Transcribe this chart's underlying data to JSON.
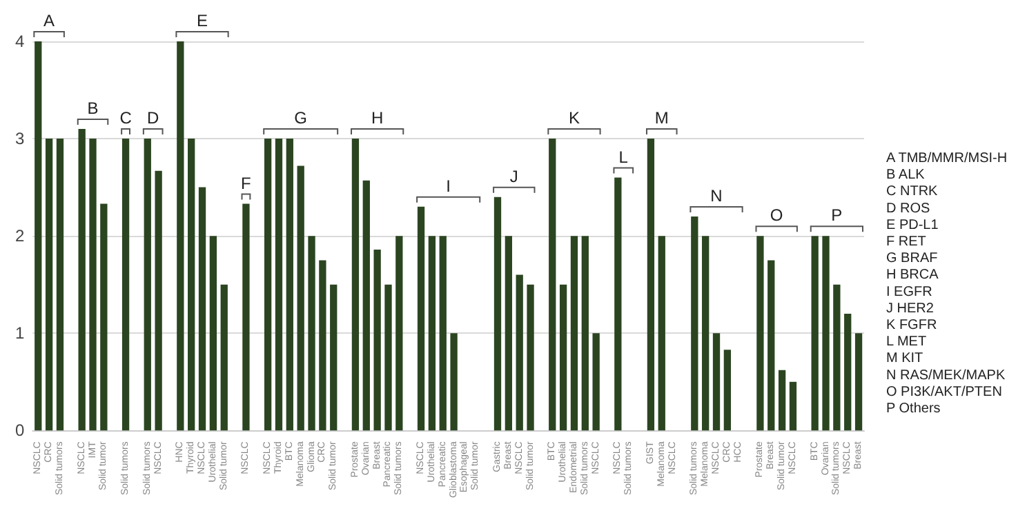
{
  "chart_data": {
    "type": "bar",
    "categories": [
      "NSCLC",
      "CRC",
      "Solid tumors",
      null,
      "NSCLC",
      "IMT",
      "Solid tumor",
      null,
      "Solid tumors",
      null,
      "Solid tumors",
      "NSCLC",
      null,
      "HNC",
      "Thyroid",
      "NSCLC",
      "Urothelial",
      "Solid tumor",
      null,
      "NSCLC",
      null,
      "NSCLC",
      "Thyroid",
      "BTC",
      "Melanoma",
      "Glioma",
      "CRC",
      "Solid tumor",
      null,
      "Prostate",
      "Ovarian",
      "Breast",
      "Pancreatic",
      "Solid tumors",
      null,
      "NSCLC",
      "Urothelial",
      "Pancreatic",
      "Glioblastoma",
      "Esophageal",
      "Solid tumor",
      null,
      "Gastric",
      "Breast",
      "NSCLC",
      "Solid tumor",
      null,
      "BTC",
      "Urothelial",
      "Endometrial",
      "Solid tumors",
      "NSCLC",
      null,
      "NSCLC",
      "Solid tumors",
      null,
      "GIST",
      "Melanoma",
      "NSCLC",
      null,
      "Solid tumors",
      "Melanoma",
      "NSCLC",
      "CRC",
      "HCC",
      null,
      "Prostate",
      "Breast",
      "Solid tumor",
      "NSCLC",
      null,
      "BTC",
      "Ovarian",
      "Solid tumors",
      "NSCLC",
      "Breast"
    ],
    "values": [
      4,
      3,
      3,
      null,
      3.1,
      3,
      2.33,
      null,
      3,
      null,
      3,
      2.67,
      null,
      4,
      3,
      2.5,
      2,
      1.5,
      null,
      2.33,
      null,
      3,
      3,
      3,
      2.72,
      2,
      1.75,
      1.5,
      null,
      3,
      2.57,
      1.86,
      1.5,
      2,
      null,
      2.3,
      2,
      2,
      1,
      null,
      null,
      null,
      2.4,
      2,
      1.6,
      1.5,
      null,
      3,
      1.5,
      2,
      2,
      1,
      null,
      2.6,
      null,
      null,
      3,
      2,
      null,
      null,
      2.2,
      2,
      1,
      0.83,
      null,
      null,
      2,
      1.75,
      0.62,
      0.5,
      null,
      2,
      2,
      1.5,
      1.2,
      1
    ],
    "color": "#2b4521",
    "ylim": [
      0,
      4
    ],
    "yticks": [
      0,
      1,
      2,
      3,
      4
    ],
    "grid": "y",
    "annotations": [
      "A",
      "B",
      "C",
      "D",
      "E",
      "F",
      "G",
      "H",
      "I",
      "J",
      "K",
      "L",
      "M",
      "N",
      "O",
      "P",
      "A TMB/MMR/MSI-H",
      "B ALK",
      "C NTRK",
      "D ROS",
      "E PD-L1",
      "F RET",
      "G BRAF",
      "H BRCA",
      "I EGFR",
      "J HER2",
      "K FGFR",
      "L MET",
      "M KIT",
      "N RAS/MEK/MAPK",
      "O PI3K/AKT/PTEN",
      "P Others"
    ]
  }
}
